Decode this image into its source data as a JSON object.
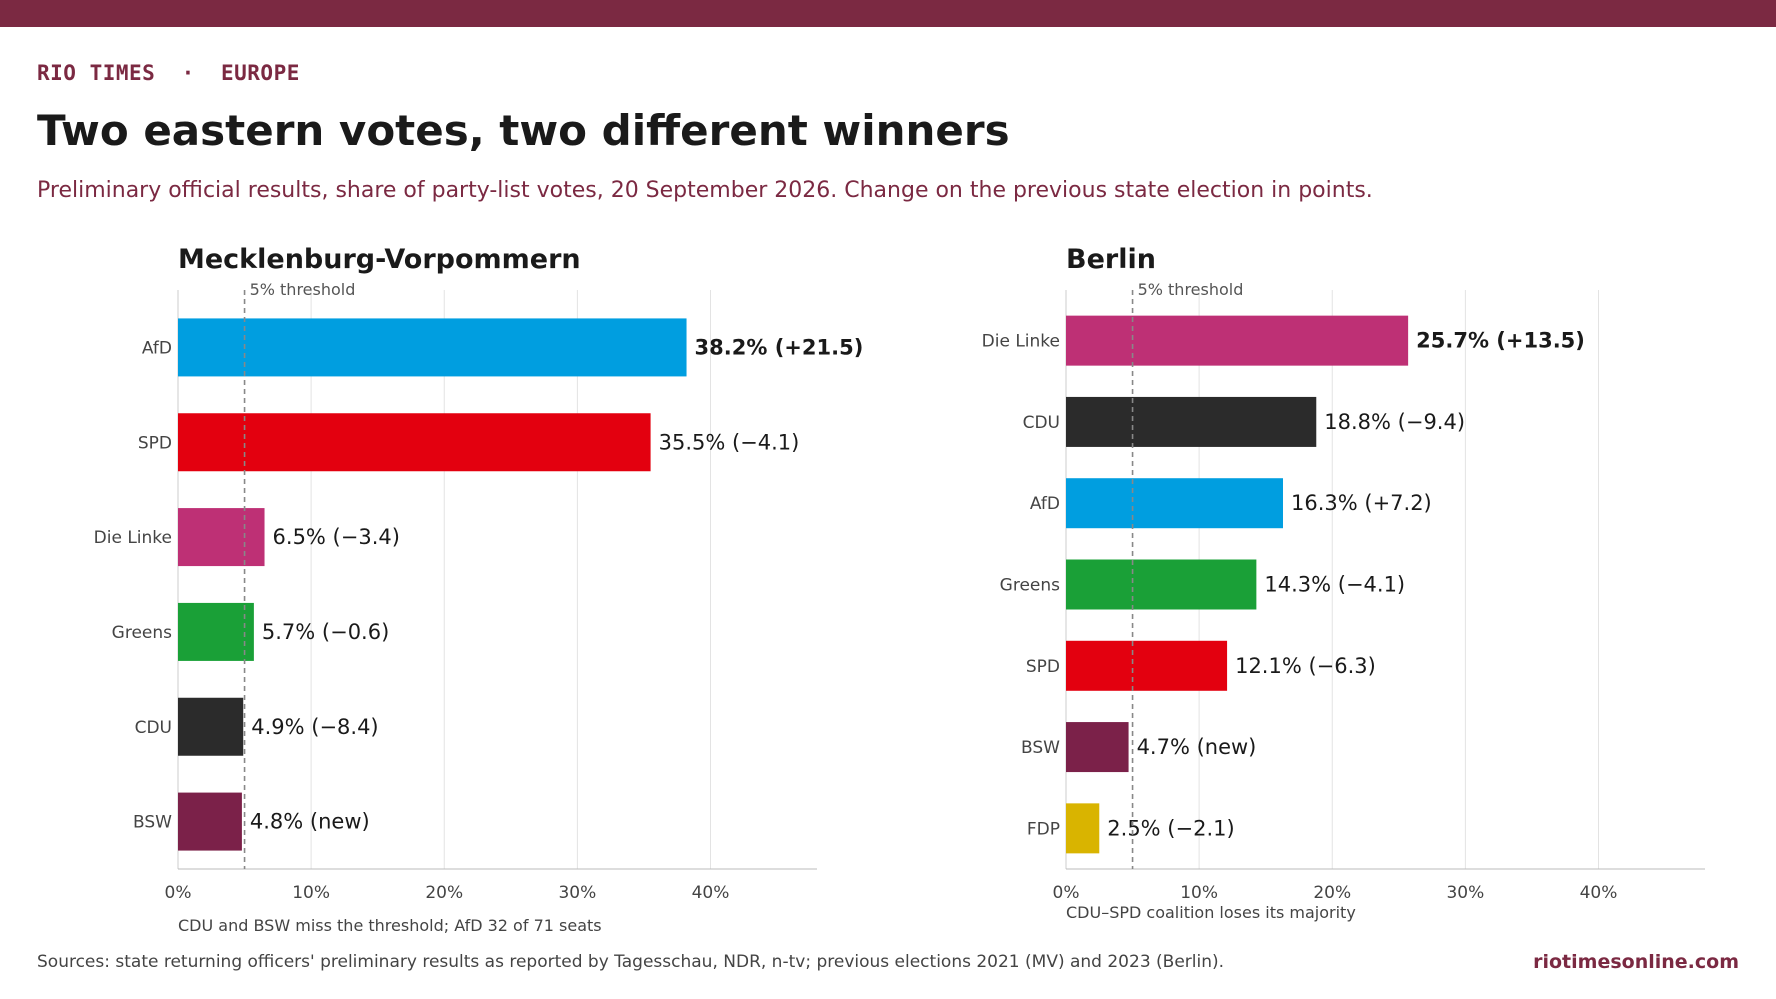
{
  "header": {
    "kicker": "RIO TIMES  ·  EUROPE",
    "title": "Two eastern votes, two different winners",
    "subtitle": "Preliminary official results, share of party-list votes, 20 September 2026. Change on the previous state election in points."
  },
  "footer": {
    "sources": "Sources: state returning officers' preliminary results as reported by Tagesschau, NDR, n-tv; previous elections 2021 (MV) and 2023 (Berlin).",
    "brand": "riotimesonline.com"
  },
  "colors": {
    "accent": "#7b2942",
    "AfD": "#009ee0",
    "SPD": "#e3000f",
    "Die Linke": "#be3075",
    "Greens": "#1aa037",
    "CDU": "#2b2b2b",
    "BSW": "#7b2149",
    "FDP": "#d9b400"
  },
  "chart_data": [
    {
      "type": "bar",
      "orientation": "horizontal",
      "title": "Mecklenburg-Vorpommern",
      "categories": [
        "AfD",
        "SPD",
        "Die Linke",
        "Greens",
        "CDU",
        "BSW"
      ],
      "values": [
        38.2,
        35.5,
        6.5,
        5.7,
        4.9,
        4.8
      ],
      "changes": [
        "+21.5",
        "−4.1",
        "−3.4",
        "−0.6",
        "−8.4",
        "new"
      ],
      "xlim": [
        0,
        48
      ],
      "xticks": [
        "0%",
        "10%",
        "20%",
        "30%",
        "40%"
      ],
      "threshold": {
        "value": 5,
        "label": "5% threshold"
      },
      "grid": true,
      "note": "CDU and BSW miss the threshold; AfD 32 of 71 seats"
    },
    {
      "type": "bar",
      "orientation": "horizontal",
      "title": "Berlin",
      "categories": [
        "Die Linke",
        "CDU",
        "AfD",
        "Greens",
        "SPD",
        "BSW",
        "FDP"
      ],
      "values": [
        25.7,
        18.8,
        16.3,
        14.3,
        12.1,
        4.7,
        2.5
      ],
      "changes": [
        "+13.5",
        "−9.4",
        "+7.2",
        "−4.1",
        "−6.3",
        "new",
        "−2.1"
      ],
      "xlim": [
        0,
        48
      ],
      "xticks": [
        "0%",
        "10%",
        "20%",
        "30%",
        "40%"
      ],
      "threshold": {
        "value": 5,
        "label": "5% threshold"
      },
      "grid": true,
      "note": "CDU–SPD coalition loses its majority"
    }
  ]
}
